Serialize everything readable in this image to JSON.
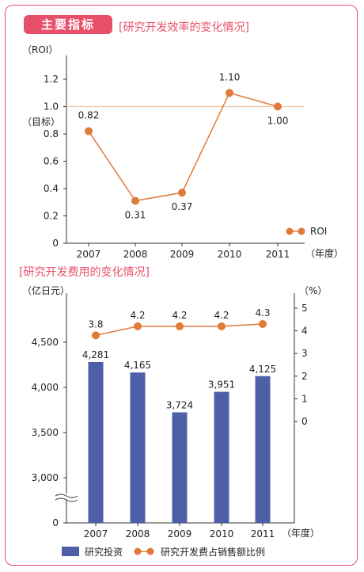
{
  "badge": "主要指标",
  "charts": {
    "roi": {
      "title": "[研究开发效率的变化情况]",
      "unit": "（ROI）",
      "target_label": "（目标）",
      "year_suffix": "（年度）",
      "legend": "ROI",
      "yticks": [
        "0",
        "0.2",
        "0.4",
        "0.6",
        "0.8",
        "1.0",
        "1.2"
      ]
    },
    "rd": {
      "title": "[研究开发费用的变化情况]",
      "left_unit": "（亿日元）",
      "right_unit": "（%）",
      "year_suffix": "（年度）",
      "left_ticks": [
        "0",
        "3,000",
        "3,500",
        "4,000",
        "4,500"
      ],
      "right_ticks": [
        "0",
        "1",
        "2",
        "3",
        "4",
        "5"
      ],
      "legend_bar": "研究投资",
      "legend_line": "研究开发费占销售额比例",
      "bar_labels": [
        "4,281",
        "4,165",
        "3,724",
        "3,951",
        "4,125"
      ],
      "line_labels": [
        "3.8",
        "4.2",
        "4.2",
        "4.2",
        "4.3"
      ]
    }
  },
  "chart_data": [
    {
      "type": "line",
      "title": "[研究开发效率的变化情况]",
      "ylabel": "（ROI）",
      "xlabel": "（年度）",
      "categories": [
        "2007",
        "2008",
        "2009",
        "2010",
        "2011"
      ],
      "series": [
        {
          "name": "ROI",
          "values": [
            0.82,
            0.31,
            0.37,
            1.1,
            1.0
          ],
          "color": "#e07a3a"
        }
      ],
      "target": 1.0,
      "ylim": [
        0,
        1.2
      ],
      "legend": "bottom-right",
      "grid": false
    },
    {
      "type": "bar",
      "title": "[研究开发费用的变化情况]",
      "ylabel": "（亿日元）",
      "xlabel": "（年度）",
      "categories": [
        "2007",
        "2008",
        "2009",
        "2010",
        "2011"
      ],
      "series": [
        {
          "name": "研究投资",
          "values": [
            4281,
            4165,
            3724,
            3951,
            4125
          ],
          "color": "#4e5fa8",
          "axis": "left"
        },
        {
          "name": "研究开发费占销售额比例",
          "values": [
            3.8,
            4.2,
            4.2,
            4.2,
            4.3
          ],
          "color": "#e07a3a",
          "axis": "right",
          "type": "line"
        }
      ],
      "ylim_left": [
        2800,
        4700
      ],
      "axis_break": true,
      "ylim_right": [
        0,
        5
      ],
      "legend": "bottom",
      "grid": false
    }
  ]
}
